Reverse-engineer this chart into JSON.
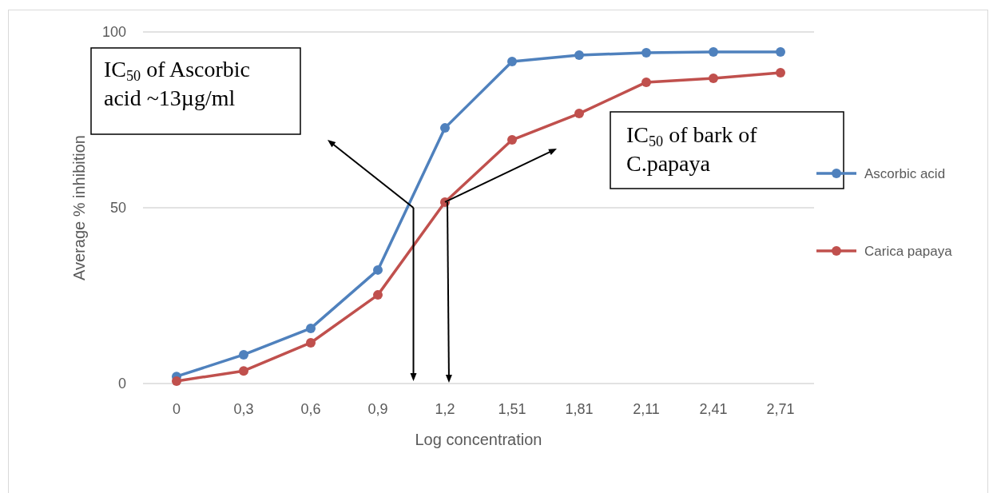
{
  "chart_data": {
    "type": "line",
    "xlabel": "Log concentration",
    "ylabel": "Average % inhibition",
    "categories": [
      "0",
      "0,3",
      "0,6",
      "0,9",
      "1,2",
      "1,51",
      "1,81",
      "2,11",
      "2,41",
      "2,71"
    ],
    "series": [
      {
        "name": "Ascorbic acid",
        "color": "#4f81bd",
        "values": [
          2,
          8.2,
          15.7,
          32.3,
          72.7,
          91.6,
          93.4,
          94.1,
          94.3,
          94.3
        ]
      },
      {
        "name": "Carica papaya",
        "color": "#c0504d",
        "values": [
          0.7,
          3.6,
          11.6,
          25.2,
          51.6,
          69.3,
          76.8,
          85.7,
          86.8,
          88.4
        ]
      }
    ],
    "ylim": [
      0,
      100
    ],
    "yticks": [
      0,
      50,
      100
    ],
    "grid": "y",
    "legend": "right",
    "marker": "circle",
    "line_style": "solid",
    "annotations": [
      "IC$_{50}$ of Ascorbic acid ~13µg/ml",
      "IC$_{50}$ of bark of C.papaya"
    ]
  }
}
